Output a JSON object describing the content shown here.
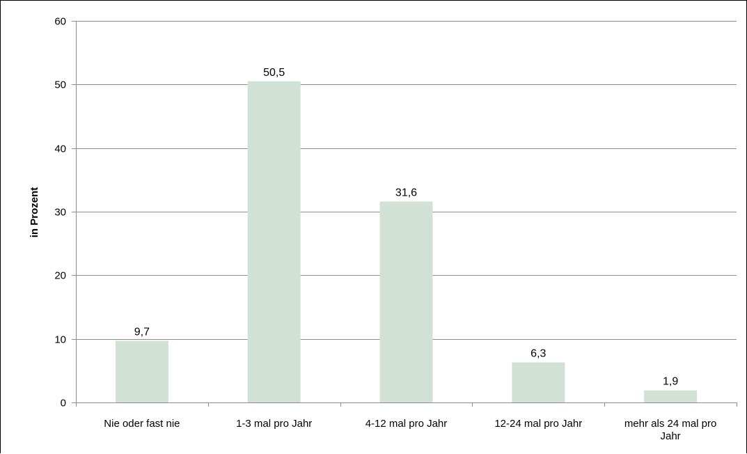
{
  "chart_data": {
    "type": "bar",
    "categories": [
      [
        "Nie oder fast nie"
      ],
      [
        "1-3 mal pro Jahr"
      ],
      [
        "4-12 mal pro Jahr"
      ],
      [
        "12-24 mal pro Jahr"
      ],
      [
        "mehr als 24 mal pro",
        "Jahr"
      ]
    ],
    "values": [
      9.7,
      50.5,
      31.6,
      6.3,
      1.9
    ],
    "value_labels": [
      "9,7",
      "50,5",
      "31,6",
      "6,3",
      "1,9"
    ],
    "ylabel": "in Prozent",
    "ylim": [
      0,
      60
    ],
    "yticks": [
      0,
      10,
      20,
      30,
      40,
      50,
      60
    ],
    "grid": true,
    "bar_color": "#d2e1d5",
    "gridline_color": "#8c8c8c"
  }
}
